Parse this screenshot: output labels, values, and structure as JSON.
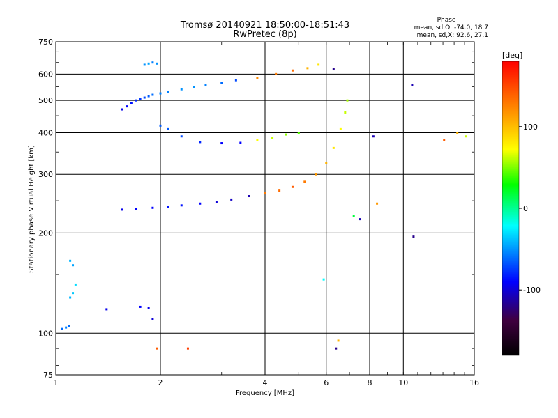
{
  "chart_data": {
    "type": "scatter",
    "title": "Tromsø 20140921 18:50:00-18:51:43",
    "subtitle": "RwPretec (8p)",
    "xlabel": "Frequency [MHz]",
    "ylabel": "Stationary phase Virtual Height [km]",
    "x_scale": "log",
    "y_scale": "log",
    "xlim": [
      1,
      16
    ],
    "ylim": [
      75,
      750
    ],
    "x_ticks": [
      1,
      2,
      4,
      6,
      8,
      10,
      16
    ],
    "x_tick_labels": [
      "1",
      "2",
      "4",
      "6",
      "8",
      "10",
      "16"
    ],
    "y_ticks": [
      75,
      100,
      200,
      300,
      400,
      500,
      600,
      750
    ],
    "y_tick_labels": [
      "75",
      "100",
      "200",
      "300",
      "400",
      "500",
      "600",
      "750"
    ],
    "grid": true,
    "stats": {
      "heading": "Phase",
      "line_o": "mean, sd,O: -74.0, 18.7",
      "line_x": "mean, sd,X:  92.6, 27.1"
    },
    "colorbar": {
      "label": "[deg]",
      "range": [
        -180,
        180
      ],
      "ticks": [
        100,
        0,
        -100
      ],
      "tick_labels": [
        "100",
        "0",
        "-100"
      ],
      "colors": [
        "#ff0000",
        "#ff8000",
        "#ffff00",
        "#00ff00",
        "#00ffff",
        "#0000ff",
        "#400040",
        "#000000"
      ]
    },
    "series": [
      {
        "values": [
          [
            1.55,
            470,
            -95
          ],
          [
            1.6,
            480,
            -90
          ],
          [
            1.65,
            490,
            -85
          ],
          [
            1.7,
            500,
            -80
          ],
          [
            1.75,
            505,
            -75
          ],
          [
            1.8,
            510,
            -70
          ],
          [
            1.85,
            515,
            -65
          ],
          [
            1.9,
            520,
            -60
          ],
          [
            2.0,
            525,
            -55
          ],
          [
            2.1,
            530,
            -55
          ],
          [
            2.3,
            540,
            -50
          ],
          [
            2.5,
            548,
            -50
          ],
          [
            2.7,
            555,
            -55
          ],
          [
            3.0,
            565,
            -60
          ],
          [
            3.3,
            575,
            -70
          ]
        ]
      },
      {
        "values": [
          [
            1.55,
            235,
            -95
          ],
          [
            1.7,
            236,
            -90
          ],
          [
            1.9,
            238,
            -90
          ],
          [
            2.1,
            240,
            -85
          ],
          [
            2.3,
            242,
            -85
          ],
          [
            2.6,
            245,
            -90
          ],
          [
            2.9,
            248,
            -100
          ],
          [
            3.2,
            252,
            -105
          ],
          [
            3.6,
            258,
            -110
          ],
          [
            4.0,
            263,
            140
          ],
          [
            4.4,
            268,
            145
          ],
          [
            4.8,
            275,
            150
          ],
          [
            5.2,
            285,
            140
          ],
          [
            5.6,
            300,
            130
          ],
          [
            6.0,
            325,
            120
          ],
          [
            6.3,
            360,
            100
          ],
          [
            6.6,
            410,
            90
          ],
          [
            6.8,
            460,
            80
          ],
          [
            6.9,
            500,
            75
          ]
        ]
      },
      {
        "values": [
          [
            2.0,
            420,
            -65
          ],
          [
            2.1,
            410,
            -65
          ],
          [
            2.3,
            390,
            -70
          ],
          [
            2.6,
            375,
            -80
          ],
          [
            3.0,
            372,
            -90
          ],
          [
            3.4,
            373,
            -90
          ],
          [
            3.8,
            380,
            90
          ],
          [
            4.2,
            385,
            80
          ],
          [
            4.6,
            395,
            70
          ],
          [
            5.0,
            400,
            60
          ]
        ]
      },
      {
        "values": [
          [
            1.04,
            103,
            -60
          ],
          [
            1.07,
            104,
            -55
          ],
          [
            1.09,
            105,
            -60
          ],
          [
            1.1,
            128,
            -40
          ],
          [
            1.12,
            132,
            -35
          ],
          [
            1.14,
            140,
            -30
          ],
          [
            1.12,
            160,
            -45
          ],
          [
            1.1,
            165,
            -40
          ],
          [
            1.4,
            118,
            -95
          ],
          [
            1.75,
            120,
            -90
          ],
          [
            1.85,
            119,
            -95
          ],
          [
            1.9,
            110,
            -100
          ]
        ]
      },
      {
        "values": [
          [
            1.8,
            640,
            -50
          ],
          [
            1.85,
            645,
            -45
          ],
          [
            1.9,
            650,
            -55
          ],
          [
            1.95,
            645,
            -50
          ],
          [
            3.8,
            585,
            135
          ],
          [
            4.3,
            600,
            140
          ],
          [
            4.8,
            615,
            145
          ],
          [
            5.3,
            625,
            120
          ],
          [
            5.7,
            640,
            100
          ],
          [
            6.3,
            620,
            -120
          ]
        ]
      },
      {
        "values": [
          [
            5.9,
            145,
            -20
          ],
          [
            6.4,
            90,
            -120
          ],
          [
            6.5,
            95,
            120
          ],
          [
            7.2,
            225,
            30
          ],
          [
            7.5,
            220,
            -110
          ],
          [
            8.2,
            390,
            -110
          ],
          [
            8.4,
            245,
            130
          ],
          [
            10.6,
            555,
            -110
          ],
          [
            10.7,
            195,
            -120
          ],
          [
            13.1,
            380,
            150
          ],
          [
            14.3,
            400,
            120
          ],
          [
            15.1,
            390,
            80
          ],
          [
            1.95,
            90,
            150
          ],
          [
            2.4,
            90,
            160
          ]
        ]
      }
    ]
  }
}
